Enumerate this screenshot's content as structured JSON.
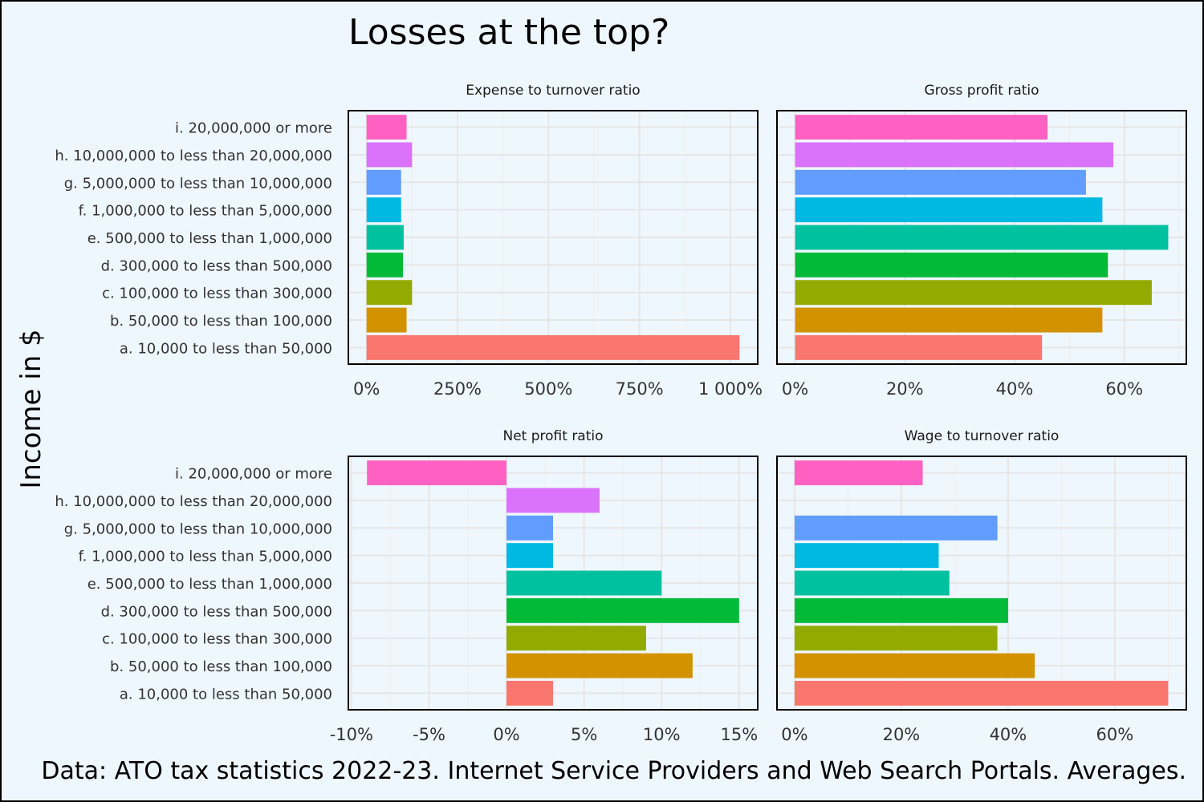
{
  "title": "Losses at the top?",
  "caption": "Data: ATO tax statistics 2022-23. Internet Service Providers and Web Search Portals. Averages.",
  "chart_data": {
    "type": "bar",
    "orientation": "horizontal",
    "facet_layout": "2x2",
    "ylabel": "Income in $",
    "categories": [
      "a. 10,000 to less than 50,000",
      "b. 50,000 to less than 100,000",
      "c. 100,000 to less than 300,000",
      "d. 300,000 to less than 500,000",
      "e. 500,000 to less than 1,000,000",
      "f. 1,000,000 to less than 5,000,000",
      "g. 5,000,000 to less than 10,000,000",
      "h. 10,000,000 to less than 20,000,000",
      "i. 20,000,000 or more"
    ],
    "colors": [
      "#F8766D",
      "#D39200",
      "#93AA00",
      "#00BA38",
      "#00C19F",
      "#00B9E3",
      "#619CFF",
      "#DB72FB",
      "#FF61C3"
    ],
    "panels": [
      {
        "name": "Expense to turnover ratio",
        "unit": "percent",
        "values": [
          1025,
          110,
          125,
          100,
          102,
          95,
          95,
          125,
          110
        ],
        "xlim": [
          -50,
          1075
        ],
        "ticks": [
          0,
          250,
          500,
          750,
          1000
        ],
        "tick_labels": [
          "0%",
          "250%",
          "500%",
          "750%",
          "1 000%"
        ]
      },
      {
        "name": "Gross profit ratio",
        "unit": "percent",
        "values": [
          45,
          56,
          65,
          57,
          68,
          56,
          53,
          58,
          46
        ],
        "xlim": [
          -3.3,
          71.3
        ],
        "ticks": [
          0,
          20,
          40,
          60
        ],
        "tick_labels": [
          "0%",
          "20%",
          "40%",
          "60%"
        ]
      },
      {
        "name": "Net profit ratio",
        "unit": "percent",
        "values": [
          3,
          12,
          9,
          15,
          10,
          3,
          3,
          6,
          -9
        ],
        "xlim": [
          -10.2,
          16.2
        ],
        "ticks": [
          -10,
          -5,
          0,
          5,
          10,
          15
        ],
        "tick_labels": [
          "-10%",
          "-5%",
          "0%",
          "5%",
          "10%",
          "15%"
        ]
      },
      {
        "name": "Wage to turnover ratio",
        "unit": "percent",
        "values": [
          70,
          45,
          38,
          40,
          29,
          27,
          38,
          null,
          24
        ],
        "xlim": [
          -3.3,
          73.4
        ],
        "ticks": [
          0,
          20,
          40,
          60
        ],
        "tick_labels": [
          "0%",
          "20%",
          "40%",
          "60%"
        ]
      }
    ]
  }
}
